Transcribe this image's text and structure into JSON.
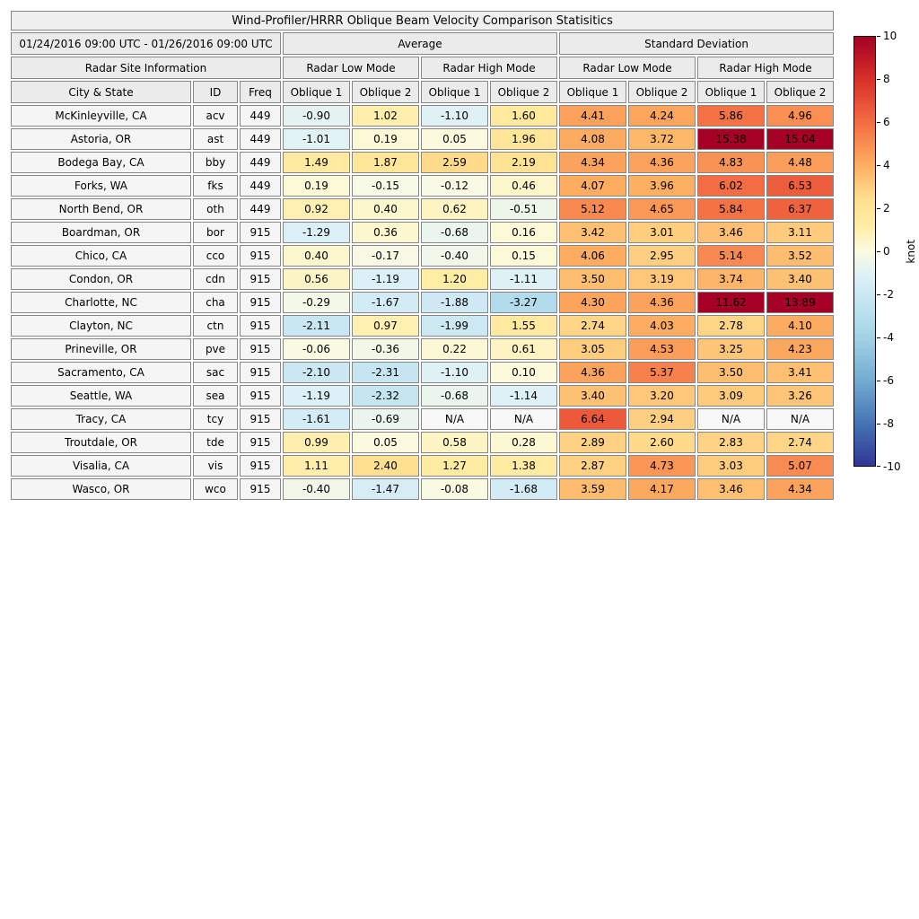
{
  "chart_data": {
    "type": "heatmap",
    "title": "Wind-Profiler/HRRR Oblique Beam Velocity Comparison Statisitics",
    "date_range": "01/24/2016 09:00 UTC - 01/26/2016 09:00 UTC",
    "col_groups": {
      "site": "Radar Site Information",
      "average": "Average",
      "std": "Standard Deviation",
      "low_mode": "Radar Low Mode",
      "high_mode": "Radar High Mode"
    },
    "col_headers": {
      "city": "City & State",
      "id": "ID",
      "freq": "Freq",
      "oblique1": "Oblique 1",
      "oblique2": "Oblique 2"
    },
    "columns": [
      "City & State",
      "ID",
      "Freq",
      "Average Radar Low Mode Oblique 1",
      "Average Radar Low Mode Oblique 2",
      "Average Radar High Mode Oblique 1",
      "Average Radar High Mode Oblique 2",
      "Standard Deviation Radar Low Mode Oblique 1",
      "Standard Deviation Radar Low Mode Oblique 2",
      "Standard Deviation Radar High Mode Oblique 1",
      "Standard Deviation Radar High Mode Oblique 2"
    ],
    "unit": "knot",
    "vmin": -10,
    "vmax": 10,
    "colorbar_ticks": [
      "10",
      "8",
      "6",
      "4",
      "2",
      "0",
      "-2",
      "-4",
      "-6",
      "-8",
      "-10"
    ],
    "colormap_stops": [
      {
        "pos": 0.0,
        "color": "#313695"
      },
      {
        "pos": 0.1,
        "color": "#4575b4"
      },
      {
        "pos": 0.2,
        "color": "#74add1"
      },
      {
        "pos": 0.32,
        "color": "#abd9e9"
      },
      {
        "pos": 0.44,
        "color": "#dcf0f7"
      },
      {
        "pos": 0.5,
        "color": "#fbfbe1"
      },
      {
        "pos": 0.56,
        "color": "#ffeda4"
      },
      {
        "pos": 0.62,
        "color": "#fee090"
      },
      {
        "pos": 0.7,
        "color": "#fdae61"
      },
      {
        "pos": 0.8,
        "color": "#f46d43"
      },
      {
        "pos": 0.9,
        "color": "#d73027"
      },
      {
        "pos": 1.0,
        "color": "#a50026"
      }
    ],
    "na_text": "N/A",
    "rows": [
      {
        "city": "McKinleyville, CA",
        "id": "acv",
        "freq": "449",
        "values": [
          "-0.90",
          "1.02",
          "-1.10",
          "1.60",
          "4.41",
          "4.24",
          "5.86",
          "4.96"
        ]
      },
      {
        "city": "Astoria, OR",
        "id": "ast",
        "freq": "449",
        "values": [
          "-1.01",
          "0.19",
          "0.05",
          "1.96",
          "4.08",
          "3.72",
          "15.38",
          "15.04"
        ]
      },
      {
        "city": "Bodega Bay, CA",
        "id": "bby",
        "freq": "449",
        "values": [
          "1.49",
          "1.87",
          "2.59",
          "2.19",
          "4.34",
          "4.36",
          "4.83",
          "4.48"
        ]
      },
      {
        "city": "Forks, WA",
        "id": "fks",
        "freq": "449",
        "values": [
          "0.19",
          "-0.15",
          "-0.12",
          "0.46",
          "4.07",
          "3.96",
          "6.02",
          "6.53"
        ]
      },
      {
        "city": "North Bend, OR",
        "id": "oth",
        "freq": "449",
        "values": [
          "0.92",
          "0.40",
          "0.62",
          "-0.51",
          "5.12",
          "4.65",
          "5.84",
          "6.37"
        ]
      },
      {
        "city": "Boardman, OR",
        "id": "bor",
        "freq": "915",
        "values": [
          "-1.29",
          "0.36",
          "-0.68",
          "0.16",
          "3.42",
          "3.01",
          "3.46",
          "3.11"
        ]
      },
      {
        "city": "Chico, CA",
        "id": "cco",
        "freq": "915",
        "values": [
          "0.40",
          "-0.17",
          "-0.40",
          "0.15",
          "4.06",
          "2.95",
          "5.14",
          "3.52"
        ]
      },
      {
        "city": "Condon, OR",
        "id": "cdn",
        "freq": "915",
        "values": [
          "0.56",
          "-1.19",
          "1.20",
          "-1.11",
          "3.50",
          "3.19",
          "3.74",
          "3.40"
        ]
      },
      {
        "city": "Charlotte, NC",
        "id": "cha",
        "freq": "915",
        "values": [
          "-0.29",
          "-1.67",
          "-1.88",
          "-3.27",
          "4.30",
          "4.36",
          "11.62",
          "13.89"
        ]
      },
      {
        "city": "Clayton, NC",
        "id": "ctn",
        "freq": "915",
        "values": [
          "-2.11",
          "0.97",
          "-1.99",
          "1.55",
          "2.74",
          "4.03",
          "2.78",
          "4.10"
        ]
      },
      {
        "city": "Prineville, OR",
        "id": "pve",
        "freq": "915",
        "values": [
          "-0.06",
          "-0.36",
          "0.22",
          "0.61",
          "3.05",
          "4.53",
          "3.25",
          "4.23"
        ]
      },
      {
        "city": "Sacramento, CA",
        "id": "sac",
        "freq": "915",
        "values": [
          "-2.10",
          "-2.31",
          "-1.10",
          "0.10",
          "4.36",
          "5.37",
          "3.50",
          "3.41"
        ]
      },
      {
        "city": "Seattle, WA",
        "id": "sea",
        "freq": "915",
        "values": [
          "-1.19",
          "-2.32",
          "-0.68",
          "-1.14",
          "3.40",
          "3.20",
          "3.09",
          "3.26"
        ]
      },
      {
        "city": "Tracy, CA",
        "id": "tcy",
        "freq": "915",
        "values": [
          "-1.61",
          "-0.69",
          "N/A",
          "N/A",
          "6.64",
          "2.94",
          "N/A",
          "N/A"
        ]
      },
      {
        "city": "Troutdale, OR",
        "id": "tde",
        "freq": "915",
        "values": [
          "0.99",
          "0.05",
          "0.58",
          "0.28",
          "2.89",
          "2.60",
          "2.83",
          "2.74"
        ]
      },
      {
        "city": "Visalia, CA",
        "id": "vis",
        "freq": "915",
        "values": [
          "1.11",
          "2.40",
          "1.27",
          "1.38",
          "2.87",
          "4.73",
          "3.03",
          "5.07"
        ]
      },
      {
        "city": "Wasco, OR",
        "id": "wco",
        "freq": "915",
        "values": [
          "-0.40",
          "-1.47",
          "-0.08",
          "-1.68",
          "3.59",
          "4.17",
          "3.46",
          "4.34"
        ]
      }
    ]
  }
}
